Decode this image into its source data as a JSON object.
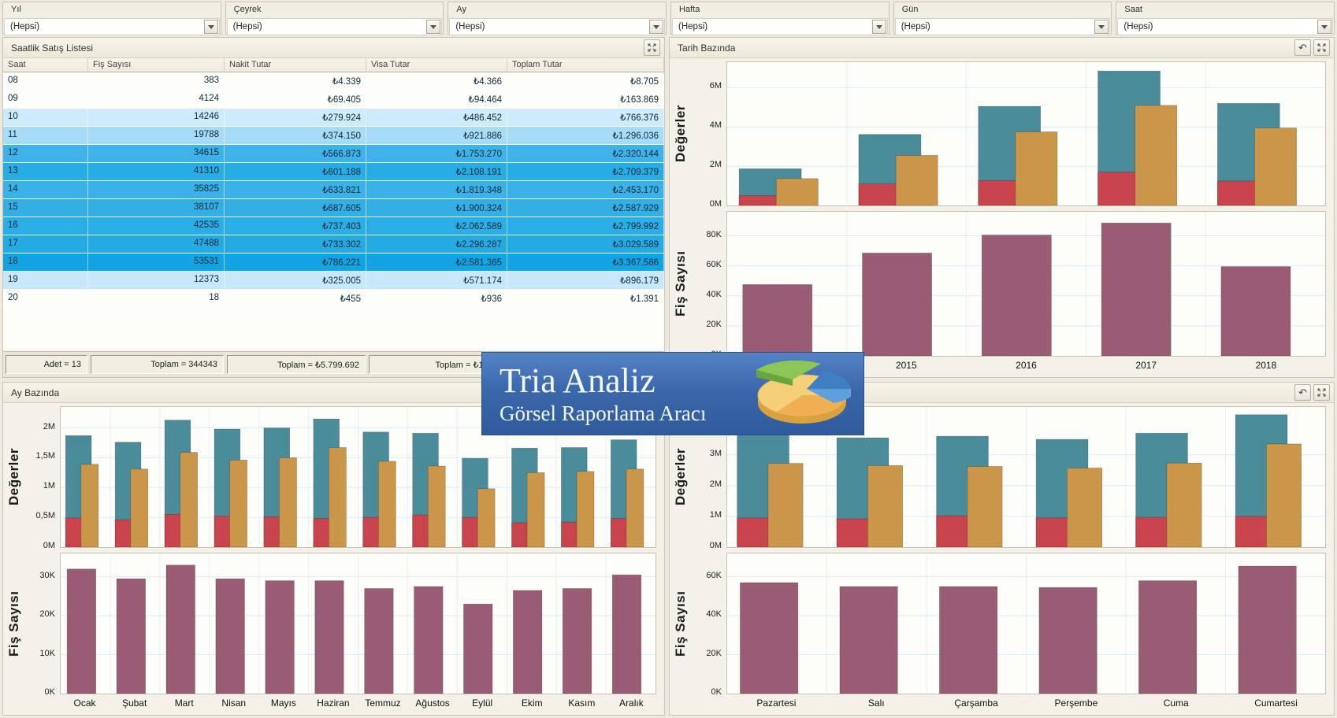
{
  "filters": [
    {
      "id": "yil",
      "label": "Yıl",
      "value": "(Hepsi)"
    },
    {
      "id": "ceyrek",
      "label": "Çeyrek",
      "value": "(Hepsi)"
    },
    {
      "id": "ay",
      "label": "Ay",
      "value": "(Hepsi)"
    },
    {
      "id": "hafta",
      "label": "Hafta",
      "value": "(Hepsi)"
    },
    {
      "id": "gun",
      "label": "Gün",
      "value": "(Hepsi)"
    },
    {
      "id": "saat",
      "label": "Saat",
      "value": "(Hepsi)"
    }
  ],
  "table": {
    "title": "Saatlik Satış Listesi",
    "columns": [
      "Saat",
      "Fiş Sayısı",
      "Nakit Tutar",
      "Visa Tutar",
      "Toplam Tutar"
    ],
    "rows": [
      {
        "saat": "08",
        "fis": "383",
        "nakit": "₺4.339",
        "visa": "₺4.366",
        "toplam": "₺8.705",
        "bg": "#fdfdfa"
      },
      {
        "saat": "09",
        "fis": "4124",
        "nakit": "₺69.405",
        "visa": "₺94.464",
        "toplam": "₺163.869",
        "bg": "#fdfdfa"
      },
      {
        "saat": "10",
        "fis": "14246",
        "nakit": "₺279.924",
        "visa": "₺486.452",
        "toplam": "₺766.376",
        "bg": "#cfeafa"
      },
      {
        "saat": "11",
        "fis": "19788",
        "nakit": "₺374.150",
        "visa": "₺921.886",
        "toplam": "₺1.296.036",
        "bg": "#a6dcf5"
      },
      {
        "saat": "12",
        "fis": "34615",
        "nakit": "₺566.873",
        "visa": "₺1.753.270",
        "toplam": "₺2.320.144",
        "bg": "#3fb3e8"
      },
      {
        "saat": "13",
        "fis": "41310",
        "nakit": "₺601.188",
        "visa": "₺2.108.191",
        "toplam": "₺2.709.379",
        "bg": "#27ace5"
      },
      {
        "saat": "14",
        "fis": "35825",
        "nakit": "₺633.821",
        "visa": "₺1.819.348",
        "toplam": "₺2.453.170",
        "bg": "#3ab1e7"
      },
      {
        "saat": "15",
        "fis": "38107",
        "nakit": "₺687.605",
        "visa": "₺1.900.324",
        "toplam": "₺2.587.929",
        "bg": "#33afe6"
      },
      {
        "saat": "16",
        "fis": "42535",
        "nakit": "₺737.403",
        "visa": "₺2.062.589",
        "toplam": "₺2.799.992",
        "bg": "#2bade5"
      },
      {
        "saat": "17",
        "fis": "47488",
        "nakit": "₺733.302",
        "visa": "₺2.296.287",
        "toplam": "₺3.029.589",
        "bg": "#25abe4"
      },
      {
        "saat": "18",
        "fis": "53531",
        "nakit": "₺786.221",
        "visa": "₺2.581.365",
        "toplam": "₺3.367.586",
        "bg": "#12a4e2"
      },
      {
        "saat": "19",
        "fis": "12373",
        "nakit": "₺325.005",
        "visa": "₺571.174",
        "toplam": "₺896.179",
        "bg": "#c6e8f9"
      },
      {
        "saat": "20",
        "fis": "18",
        "nakit": "₺455",
        "visa": "₺936",
        "toplam": "₺1.391",
        "bg": "#fdfdfa"
      }
    ],
    "footer": [
      "Adet = 13",
      "Toplam = 344343",
      "Toplam = ₺5.799.692",
      "Toplam = ₺16.60",
      ""
    ]
  },
  "panels": {
    "tarih": {
      "title": "Tarih Bazında"
    },
    "ay": {
      "title": "Ay Bazında"
    },
    "gun": {
      "title": ""
    }
  },
  "colors": {
    "toplam_bar": "#4A8C99",
    "visa_bar": "#C9964A",
    "nakit_bar": "#C9444C",
    "fis_bar": "#9A5C74",
    "gridline": "#d9edf7",
    "heatmap_max": "#12a4e2",
    "logo_bg": "#3b68aa"
  },
  "chart_data": {
    "tarih_degerler": {
      "type": "overlap-bar",
      "ylabel": "Değerler",
      "ylim": [
        0,
        7.3
      ],
      "ticks": [
        {
          "v": 0,
          "l": "0M"
        },
        {
          "v": 2,
          "l": "2M"
        },
        {
          "v": 4,
          "l": "4M"
        },
        {
          "v": 6,
          "l": "6M"
        }
      ],
      "categories": [
        "",
        "2015",
        "2016",
        "2017",
        "2018"
      ],
      "showXLabels": false,
      "series": [
        {
          "name": "Toplam Tutar",
          "color": "#4A8C99",
          "values": [
            1.87,
            3.62,
            5.05,
            6.85,
            5.2
          ]
        },
        {
          "name": "Nakit Tutar",
          "color": "#C9444C",
          "values": [
            0.5,
            1.1,
            1.27,
            1.7,
            1.25
          ]
        },
        {
          "name": "Visa Tutar",
          "color": "#C9964A",
          "values": [
            1.37,
            2.55,
            3.75,
            5.1,
            3.95
          ]
        }
      ]
    },
    "tarih_fis": {
      "type": "single-bar",
      "ylabel": "Fiş Sayısı",
      "ylim": [
        0,
        96
      ],
      "ticks": [
        {
          "v": 0,
          "l": "0K"
        },
        {
          "v": 20,
          "l": "20K"
        },
        {
          "v": 40,
          "l": "40K"
        },
        {
          "v": 60,
          "l": "60K"
        },
        {
          "v": 80,
          "l": "80K"
        }
      ],
      "categories": [
        "",
        "2015",
        "2016",
        "2017",
        "2018"
      ],
      "showXLabels": true,
      "series": [
        {
          "name": "Fiş Sayısı",
          "color": "#9A5C74",
          "values": [
            47.5,
            68.5,
            80.5,
            88.5,
            59.5
          ]
        }
      ]
    },
    "ay_degerler": {
      "type": "overlap-bar",
      "ylabel": "Değerler",
      "ylim": [
        0,
        2.35
      ],
      "ticks": [
        {
          "v": 0,
          "l": "0M"
        },
        {
          "v": 0.5,
          "l": "0,5M"
        },
        {
          "v": 1,
          "l": "1M"
        },
        {
          "v": 1.5,
          "l": "1,5M"
        },
        {
          "v": 2,
          "l": "2M"
        }
      ],
      "categories": [
        "Ocak",
        "Şubat",
        "Mart",
        "Nisan",
        "Mayıs",
        "Haziran",
        "Temmuz",
        "Ağustos",
        "Eylül",
        "Ekim",
        "Kasım",
        "Aralık"
      ],
      "showXLabels": false,
      "series": [
        {
          "name": "Toplam Tutar",
          "color": "#4A8C99",
          "values": [
            1.87,
            1.76,
            2.13,
            1.98,
            2.0,
            2.15,
            1.93,
            1.91,
            1.49,
            1.66,
            1.67,
            1.8
          ]
        },
        {
          "name": "Nakit Tutar",
          "color": "#C9444C",
          "values": [
            0.49,
            0.46,
            0.55,
            0.52,
            0.51,
            0.48,
            0.5,
            0.54,
            0.5,
            0.41,
            0.42,
            0.48
          ]
        },
        {
          "name": "Visa Tutar",
          "color": "#C9964A",
          "values": [
            1.39,
            1.31,
            1.59,
            1.46,
            1.5,
            1.67,
            1.44,
            1.36,
            0.98,
            1.25,
            1.27,
            1.31
          ]
        }
      ]
    },
    "ay_fis": {
      "type": "single-bar",
      "ylabel": "Fiş Sayısı",
      "ylim": [
        0,
        36
      ],
      "ticks": [
        {
          "v": 0,
          "l": "0K"
        },
        {
          "v": 10,
          "l": "10K"
        },
        {
          "v": 20,
          "l": "20K"
        },
        {
          "v": 30,
          "l": "30K"
        }
      ],
      "categories": [
        "Ocak",
        "Şubat",
        "Mart",
        "Nisan",
        "Mayıs",
        "Haziran",
        "Temmuz",
        "Ağustos",
        "Eylül",
        "Ekim",
        "Kasım",
        "Aralık"
      ],
      "showXLabels": true,
      "series": [
        {
          "name": "Fiş Sayısı",
          "color": "#9A5C74",
          "values": [
            32,
            29.5,
            33,
            29.5,
            29,
            29,
            27,
            27.5,
            23,
            26.5,
            27,
            30.5
          ]
        }
      ]
    },
    "gun_degerler": {
      "type": "overlap-bar",
      "ylabel": "Değerler",
      "ylim": [
        0,
        4.55
      ],
      "ticks": [
        {
          "v": 0,
          "l": "0M"
        },
        {
          "v": 1,
          "l": "1M"
        },
        {
          "v": 2,
          "l": "2M"
        },
        {
          "v": 3,
          "l": "3M"
        }
      ],
      "categories": [
        "Pazartesi",
        "Salı",
        "Çarşamba",
        "Perşembe",
        "Cuma",
        "Cumartesi"
      ],
      "showXLabels": false,
      "series": [
        {
          "name": "Toplam Tutar",
          "color": "#4A8C99",
          "values": [
            3.65,
            3.55,
            3.6,
            3.5,
            3.7,
            4.3
          ]
        },
        {
          "name": "Nakit Tutar",
          "color": "#C9444C",
          "values": [
            0.95,
            0.92,
            1.02,
            0.95,
            0.97,
            1.0
          ]
        },
        {
          "name": "Visa Tutar",
          "color": "#C9964A",
          "values": [
            2.72,
            2.65,
            2.62,
            2.57,
            2.73,
            3.35
          ]
        }
      ]
    },
    "gun_fis": {
      "type": "single-bar",
      "ylabel": "Fiş Sayısı",
      "ylim": [
        0,
        72
      ],
      "ticks": [
        {
          "v": 0,
          "l": "0K"
        },
        {
          "v": 20,
          "l": "20K"
        },
        {
          "v": 40,
          "l": "40K"
        },
        {
          "v": 60,
          "l": "60K"
        }
      ],
      "categories": [
        "Pazartesi",
        "Salı",
        "Çarşamba",
        "Perşembe",
        "Cuma",
        "Cumartesi"
      ],
      "showXLabels": true,
      "series": [
        {
          "name": "Fiş Sayısı",
          "color": "#9A5C74",
          "values": [
            57,
            55,
            55,
            54.5,
            58,
            65.5
          ]
        }
      ]
    }
  },
  "logo": {
    "line1": "Tria Analiz",
    "line2": "Görsel Raporlama Aracı"
  }
}
